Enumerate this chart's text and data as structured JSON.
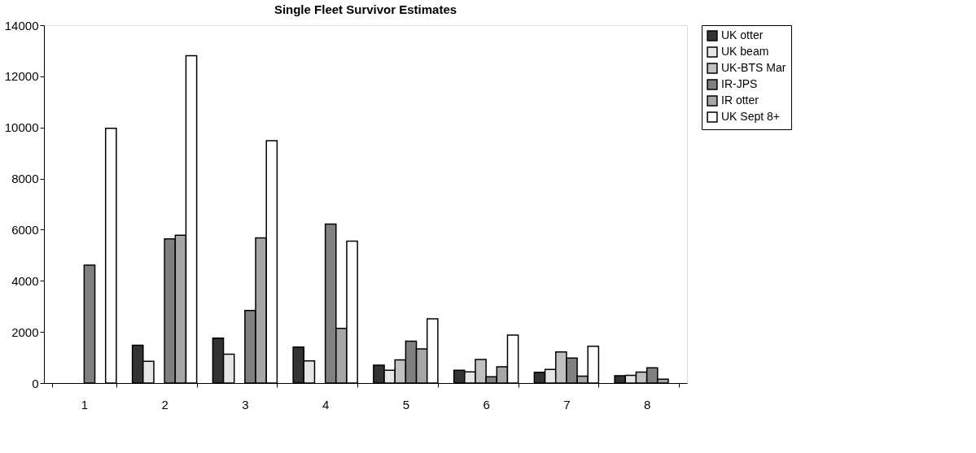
{
  "chart_data": {
    "type": "bar",
    "title": "Single Fleet Survivor Estimates",
    "categories": [
      "1",
      "2",
      "3",
      "4",
      "5",
      "6",
      "7",
      "8"
    ],
    "series": [
      {
        "name": "UK otter",
        "color": "#333333",
        "values": [
          null,
          1480,
          1760,
          1410,
          700,
          500,
          420,
          290
        ]
      },
      {
        "name": "UK beam",
        "color": "#e6e6e6",
        "values": [
          null,
          850,
          1130,
          870,
          500,
          440,
          530,
          300
        ]
      },
      {
        "name": "UK-BTS Mar",
        "color": "#c0c0c0",
        "values": [
          null,
          null,
          null,
          null,
          910,
          920,
          1220,
          430
        ]
      },
      {
        "name": "IR-JPS",
        "color": "#808080",
        "values": [
          4610,
          5640,
          2840,
          6220,
          1640,
          250,
          980,
          600
        ]
      },
      {
        "name": "IR otter",
        "color": "#a6a6a6",
        "values": [
          null,
          5780,
          5680,
          2140,
          1340,
          640,
          270,
          150
        ]
      },
      {
        "name": "UK Sept 8+",
        "color": "#ffffff",
        "values": [
          9970,
          12810,
          9480,
          5550,
          2510,
          1880,
          1440,
          null
        ]
      }
    ],
    "ylim": [
      0,
      14000
    ],
    "yticks": [
      0,
      2000,
      4000,
      6000,
      8000,
      10000,
      12000,
      14000
    ],
    "grid": false,
    "legend": "right"
  }
}
